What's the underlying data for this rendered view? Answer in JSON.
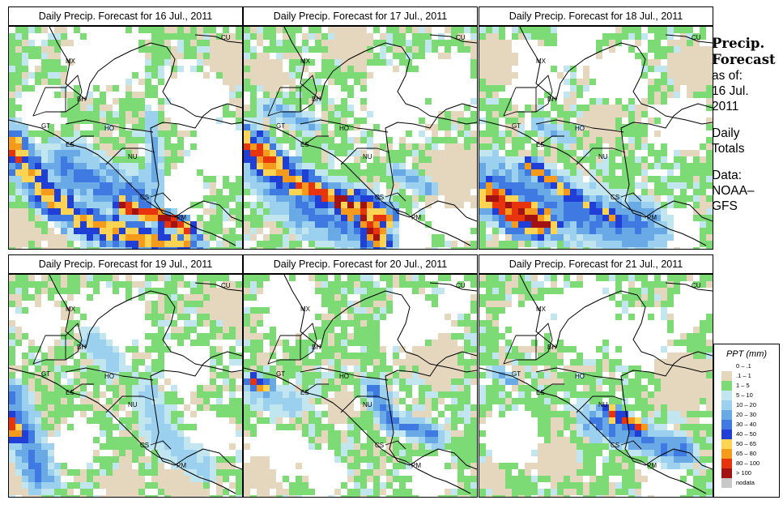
{
  "panels": [
    {
      "title": "Daily Precip. Forecast for  16 Jul., 2011",
      "date": "16 Jul., 2011"
    },
    {
      "title": "Daily Precip. Forecast for  17 Jul., 2011",
      "date": "17 Jul., 2011"
    },
    {
      "title": "Daily Precip. Forecast for  18 Jul., 2011",
      "date": "18 Jul., 2011"
    },
    {
      "title": "Daily Precip. Forecast for  19 Jul., 2011",
      "date": "19 Jul., 2011"
    },
    {
      "title": "Daily Precip. Forecast for  20 Jul., 2011",
      "date": "20 Jul., 2011"
    },
    {
      "title": "Daily Precip. Forecast for  21 Jul., 2011",
      "date": "21 Jul., 2011"
    }
  ],
  "country_labels": [
    "MX",
    "BH",
    "GT",
    "HO",
    "ES",
    "NU",
    "CS",
    "PM",
    "CU"
  ],
  "sidebar": {
    "title_line1": "Precip.",
    "title_line2": "Forecast",
    "asof_line1": "as of:",
    "asof_line2": "16 Jul.",
    "asof_line3": "2011",
    "totals_line1": "Daily",
    "totals_line2": "Totals",
    "data_line1": "Data:",
    "data_line2": "NOAA–",
    "data_line3": "GFS"
  },
  "legend": {
    "title": "PPT (mm)",
    "items": [
      {
        "label": "0 – .1",
        "color": "#ffffff"
      },
      {
        "label": ".1 – 1",
        "color": "#e5d7bd"
      },
      {
        "label": "1 – 5",
        "color": "#7ddb76"
      },
      {
        "label": "5 – 10",
        "color": "#c1e6f0"
      },
      {
        "label": "10 – 20",
        "color": "#9bd0ee"
      },
      {
        "label": "20 – 30",
        "color": "#69a9e6"
      },
      {
        "label": "30 – 40",
        "color": "#3f7ae2"
      },
      {
        "label": "40 – 50",
        "color": "#1f3fd6"
      },
      {
        "label": "50 – 65",
        "color": "#ffd452"
      },
      {
        "label": "65 – 80",
        "color": "#f59a1a"
      },
      {
        "label": "80 – 100",
        "color": "#e8340d"
      },
      {
        "label": "> 100",
        "color": "#a31212"
      },
      {
        "label": "nodata",
        "color": "#c8c8c8"
      }
    ]
  }
}
